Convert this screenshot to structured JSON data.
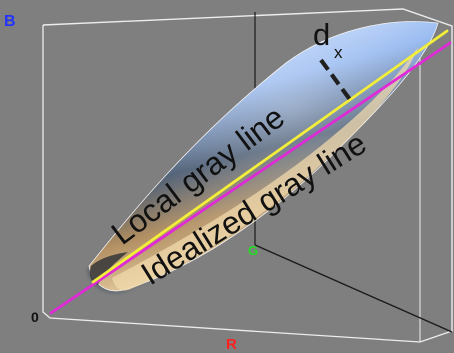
{
  "axes": {
    "b_label": "B",
    "r_label": "R",
    "g_label": "G",
    "origin_label": "0"
  },
  "lines": {
    "local_gray_label": "Local gray line",
    "idealized_gray_label": "Idealized gray line"
  },
  "distance": {
    "d_label": "d",
    "x_subscript": "x"
  },
  "colors": {
    "background": "#7f7f7f",
    "b_axis": "#2233ff",
    "r_axis": "#ff2020",
    "g_axis": "#22dd22",
    "local_gray_line": "#f2ee3a",
    "idealized_gray_line": "#e02ad8",
    "cube_edges": "#f2f2f2"
  }
}
